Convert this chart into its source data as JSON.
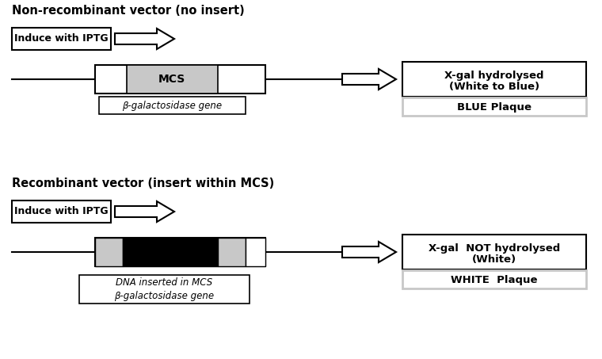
{
  "bg_color": "#ffffff",
  "title1": "Non-recombinant vector (no insert)",
  "title2": "Recombinant vector (insert within MCS)",
  "iptg_label": "Induce with IPTG",
  "mcs_label": "MCS",
  "beta_gal_label1": "β-galactosidase gene",
  "beta_gal_label2": "DNA inserted in MCS\nβ-galactosidase gene",
  "result1_line1": "X-gal hydrolysed",
  "result1_line2": "(White to Blue)",
  "result1_box": "BLUE Plaque",
  "result2_line1": "X-gal  NOT hydrolysed",
  "result2_line2": "(White)",
  "result2_box": "WHITE  Plaque",
  "light_gray": "#c8c8c8",
  "black_color": "#000000",
  "white_color": "#ffffff"
}
